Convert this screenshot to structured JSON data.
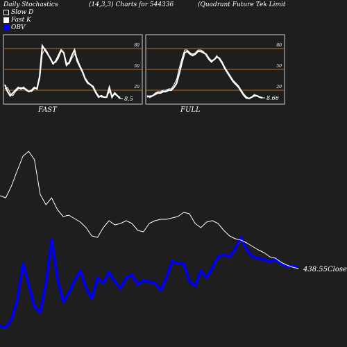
{
  "header": {
    "title": "Daily Stochastics",
    "params": "(14,3,3) Charts for 544336",
    "company": "(Quadrant Future   Tek Limit"
  },
  "legend": {
    "items": [
      {
        "label": "Slow  D",
        "color": "#1e1e1e",
        "border": "#ffffff"
      },
      {
        "label": "Fast  K",
        "color": "#ffffff",
        "border": "#ffffff"
      },
      {
        "label": "OBV",
        "color": "#0000ff",
        "border": "#0000ff"
      }
    ]
  },
  "colors": {
    "background": "#1e1e1e",
    "panel_border": "#cccccc",
    "level_line": "#c07020",
    "stoch_line": "#ffffff",
    "obv_line": "#0000ee",
    "price_line": "#ffffff"
  },
  "chart_data": [
    {
      "type": "line",
      "panel": "FAST",
      "label": "FAST",
      "ylim": [
        0,
        100
      ],
      "yticks": [
        20,
        50,
        80
      ],
      "levels": [
        20,
        50,
        80
      ],
      "last_value_label": "8.5",
      "series": [
        {
          "values": [
            28,
            18,
            12,
            16,
            20,
            24,
            22,
            24,
            20,
            18,
            20,
            24,
            22,
            40,
            84,
            78,
            72,
            66,
            58,
            62,
            70,
            78,
            74,
            56,
            60,
            70,
            78,
            62,
            54,
            46,
            36,
            30,
            28,
            24,
            16,
            10,
            12,
            10,
            10,
            24,
            10,
            16,
            12,
            8
          ]
        },
        {
          "values": [
            22,
            24,
            16,
            12,
            18,
            22,
            24,
            22,
            22,
            18,
            18,
            22,
            24,
            36,
            72,
            80,
            74,
            64,
            60,
            60,
            66,
            76,
            74,
            60,
            58,
            66,
            72,
            66,
            56,
            48,
            38,
            32,
            28,
            26,
            18,
            12,
            10,
            10,
            10,
            18,
            12,
            14,
            12,
            10
          ]
        }
      ]
    },
    {
      "type": "line",
      "panel": "FULL",
      "label": "FULL",
      "ylim": [
        0,
        100
      ],
      "yticks": [
        20,
        50,
        80
      ],
      "levels": [
        20,
        50,
        80
      ],
      "last_value_label": "8.66",
      "series": [
        {
          "values": [
            12,
            10,
            12,
            14,
            16,
            16,
            18,
            18,
            20,
            20,
            24,
            30,
            44,
            60,
            74,
            76,
            72,
            70,
            72,
            76,
            76,
            74,
            72,
            66,
            62,
            64,
            68,
            66,
            60,
            52,
            46,
            40,
            34,
            30,
            26,
            20,
            14,
            10,
            8,
            10,
            12,
            12,
            10,
            9
          ]
        },
        {
          "values": [
            10,
            12,
            12,
            16,
            18,
            18,
            20,
            20,
            22,
            22,
            28,
            36,
            52,
            66,
            78,
            78,
            74,
            72,
            74,
            78,
            78,
            76,
            70,
            64,
            60,
            64,
            70,
            64,
            58,
            50,
            44,
            38,
            32,
            28,
            24,
            18,
            12,
            8,
            8,
            10,
            14,
            12,
            10,
            9
          ]
        }
      ]
    },
    {
      "type": "line",
      "panel": "price-obv",
      "close_label": "438.55Close",
      "series": [
        {
          "name": "OBV",
          "values": [
            20,
            18,
            30,
            58,
            110,
            80,
            48,
            40,
            82,
            145,
            88,
            55,
            68,
            86,
            100,
            75,
            60,
            90,
            82,
            98,
            84,
            75,
            90,
            94,
            80,
            86,
            84,
            82,
            72,
            90,
            114,
            110,
            110,
            84,
            78,
            100,
            90,
            104,
            120,
            123,
            120,
            132,
            148,
            130,
            120,
            118,
            116,
            113,
            116,
            110,
            106,
            106,
            105
          ]
        },
        {
          "name": "Price",
          "values": [
            208,
            205,
            222,
            244,
            265,
            272,
            260,
            210,
            195,
            205,
            188,
            178,
            180,
            175,
            170,
            162,
            150,
            148,
            162,
            172,
            166,
            168,
            172,
            168,
            158,
            156,
            168,
            172,
            174,
            174,
            176,
            178,
            184,
            182,
            168,
            162,
            170,
            172,
            168,
            158,
            150,
            146,
            144,
            140,
            135,
            130,
            126,
            120,
            118,
            112,
            108,
            105,
            103
          ]
        }
      ]
    }
  ]
}
